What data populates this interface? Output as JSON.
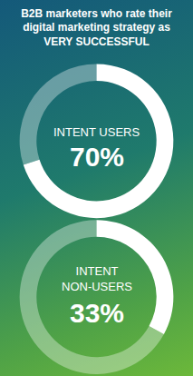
{
  "chart_data": [
    {
      "type": "pie",
      "title": "B2B marketers who rate their\ndigital marketing strategy as\nVERY SUCCESSFUL",
      "categories": [
        "INTENT USERS",
        null
      ],
      "values": [
        70,
        30
      ],
      "value_labels": [
        "70%",
        null
      ],
      "colors": [
        "#ffffff",
        "rgba(255,255,255,0.35)"
      ]
    },
    {
      "type": "pie",
      "categories": [
        "INTENT\nNON-USERS",
        null
      ],
      "values": [
        33,
        67
      ],
      "value_labels": [
        "33%",
        null
      ],
      "colors": [
        "#ffffff",
        "rgba(255,255,255,0.35)"
      ]
    }
  ]
}
